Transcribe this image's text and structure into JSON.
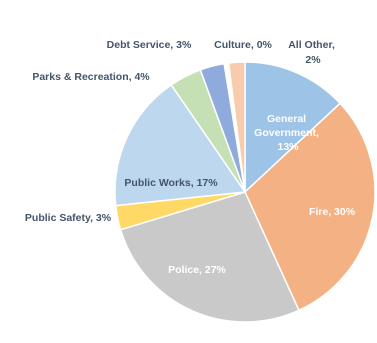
{
  "chart_data": {
    "type": "pie",
    "slices": [
      {
        "label": "General Government",
        "value": 13,
        "color": "#9dc3e6"
      },
      {
        "label": "Fire",
        "value": 30,
        "color": "#f4b183"
      },
      {
        "label": "Police",
        "value": 27,
        "color": "#c9c9c9"
      },
      {
        "label": "Public Safety",
        "value": 3,
        "color": "#ffd966"
      },
      {
        "label": "Public Works",
        "value": 17,
        "color": "#bdd7ee"
      },
      {
        "label": "Parks & Recreation",
        "value": 4,
        "color": "#c5e0b4"
      },
      {
        "label": "Debt Service",
        "value": 3,
        "color": "#8faadc"
      },
      {
        "label": "Culture",
        "value": 0,
        "color": "#ffffff"
      },
      {
        "label": "All Other",
        "value": 2,
        "color": "#f8cbad"
      }
    ],
    "data_labels": [
      "General Government, 13%",
      "Fire, 30%",
      "Police, 27%",
      "Public Safety, 3%",
      "Public Works, 17%",
      "Parks & Recreation, 4%",
      "Debt Service, 3%",
      "Culture, 0%",
      "All Other, 2%"
    ]
  }
}
